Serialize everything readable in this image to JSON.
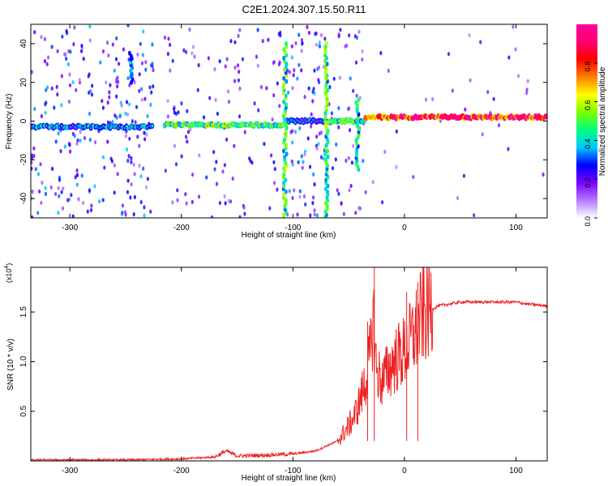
{
  "title": "C2E1.2024.307.15.50.R11",
  "chart_data": [
    {
      "type": "heatmap",
      "xlabel": "Height of straight line (km)",
      "ylabel": "Frequency (Hz)",
      "xlim": [
        -335,
        128
      ],
      "ylim": [
        -50,
        50
      ],
      "x_ticks": [
        -300,
        -200,
        -100,
        0,
        100
      ],
      "x_tick_labels": [
        "-300",
        "-200",
        "-100",
        "0",
        "100"
      ],
      "y_ticks": [
        -40,
        -20,
        0,
        20,
        40
      ],
      "y_tick_labels": [
        "-40",
        "-20",
        "0",
        "20",
        "40"
      ],
      "colorbar": {
        "label": "Normalized spectral amplitude",
        "range": [
          0,
          1
        ],
        "ticks": [
          0,
          0.2,
          0.4,
          0.6,
          0.8
        ],
        "tick_labels": [
          "0.0",
          "0.2",
          "0.4",
          "0.6",
          "0.8"
        ],
        "colors": [
          "#ffffff",
          "#b37aff",
          "#7a00ff",
          "#0000ff",
          "#00c8ff",
          "#00ff80",
          "#7aff00",
          "#ffff00",
          "#ff8000",
          "#ff0000",
          "#ff0070",
          "#ff00a0"
        ]
      },
      "traces": [
        {
          "x_start": -335,
          "x_end": -225,
          "freq": -3,
          "level": 0.35,
          "noise": "strong"
        },
        {
          "x_start": -215,
          "x_end": -108,
          "freq": -2,
          "level": 0.55,
          "noise": "medium"
        },
        {
          "x_start": -105,
          "x_end": -70,
          "freq": 0,
          "level": 0.3,
          "noise": "vertical-band"
        },
        {
          "x_start": -68,
          "x_end": -35,
          "freq": 0,
          "level": 0.5,
          "noise": "spread"
        },
        {
          "x_start": -35,
          "x_end": 128,
          "freq": 2,
          "level": 0.95,
          "noise": "weak"
        }
      ],
      "features": [
        {
          "x": -245,
          "freq_range": [
            20,
            35
          ],
          "level": 0.35
        },
        {
          "x": -107,
          "freq_range": [
            -50,
            40
          ],
          "level": 0.5
        },
        {
          "x": -70,
          "freq_range": [
            -50,
            40
          ],
          "level": 0.5
        },
        {
          "x": -42,
          "freq_range": [
            -25,
            12
          ],
          "level": 0.45
        }
      ]
    },
    {
      "type": "line",
      "xlabel": "Height of straight line (km)",
      "ylabel": "SNR (10 * v/v)",
      "y_multiplier": "(x10",
      "y_multiplier_exp": "4",
      "xlim": [
        -335,
        128
      ],
      "ylim": [
        0,
        1.95
      ],
      "x_ticks": [
        -300,
        -200,
        -100,
        0,
        100
      ],
      "x_tick_labels": [
        "-300",
        "-200",
        "-100",
        "0",
        "100"
      ],
      "y_ticks": [
        0.5,
        1.0,
        1.5
      ],
      "y_tick_labels": [
        "0.5",
        "1.0",
        "1.5"
      ],
      "line_color": "#ee2222",
      "series": [
        {
          "x": [
            -335,
            -300,
            -250,
            -200,
            -170,
            -160,
            -150,
            -120,
            -100,
            -80,
            -60,
            -50,
            -45,
            -40,
            -35,
            -30,
            -28,
            -25,
            -20,
            -15,
            -10,
            -5,
            0,
            5,
            10,
            15,
            20,
            25,
            30,
            40,
            50,
            60,
            80,
            100,
            110,
            120,
            128
          ],
          "y": [
            0.01,
            0.01,
            0.01,
            0.02,
            0.04,
            0.1,
            0.05,
            0.06,
            0.07,
            0.1,
            0.2,
            0.35,
            0.45,
            0.6,
            0.8,
            1.1,
            1.5,
            0.9,
            0.8,
            0.9,
            1.0,
            1.05,
            1.1,
            1.2,
            1.3,
            1.45,
            1.5,
            1.53,
            1.56,
            1.58,
            1.6,
            1.6,
            1.6,
            1.6,
            1.58,
            1.57,
            1.56
          ]
        }
      ],
      "peaks": [
        {
          "x": -27,
          "y": 1.95
        },
        {
          "x": -33,
          "y": 1.4
        },
        {
          "x": 12,
          "y": 1.8
        },
        {
          "x": 2,
          "y": 1.7
        }
      ]
    }
  ]
}
